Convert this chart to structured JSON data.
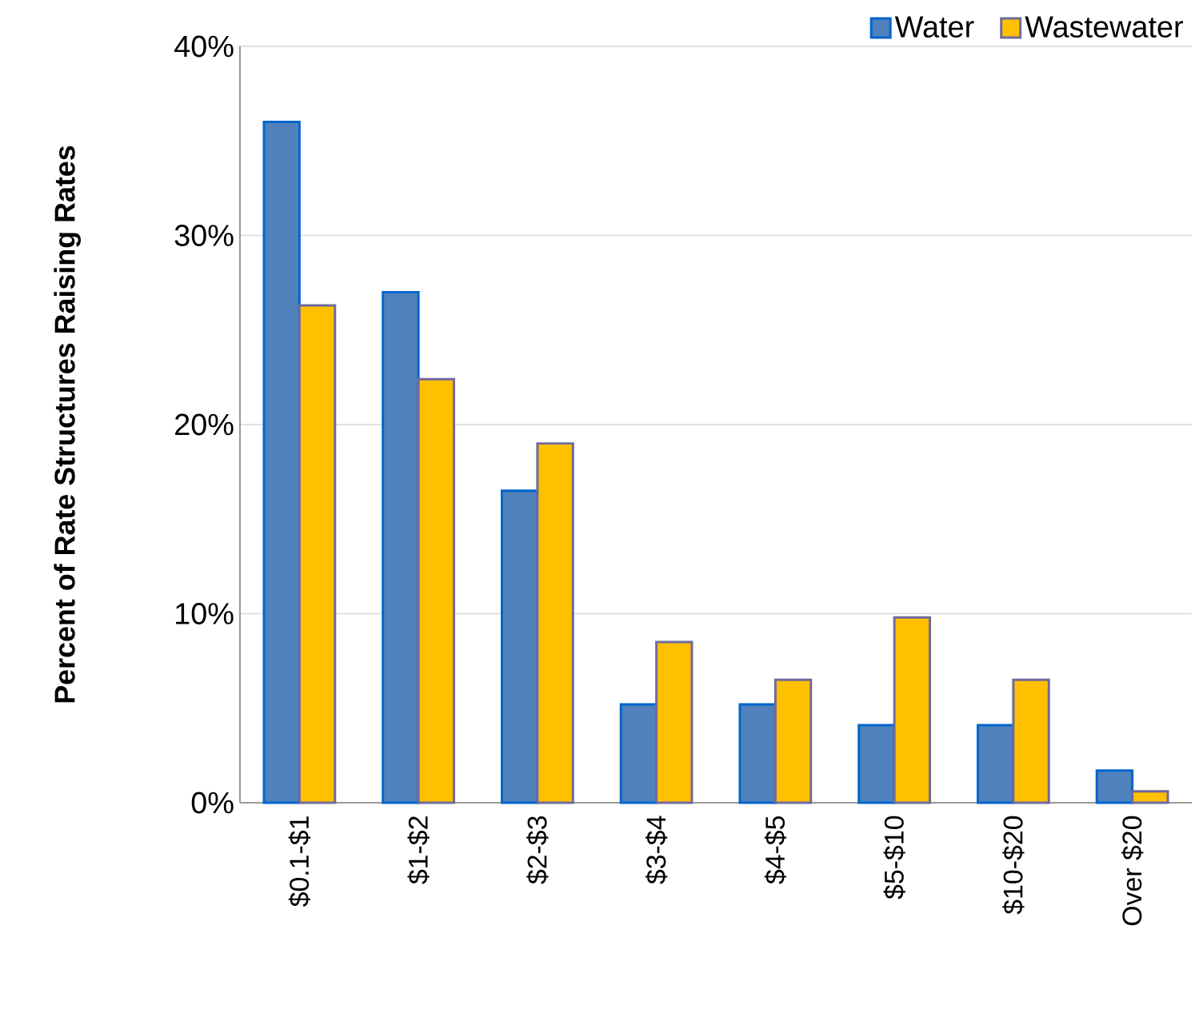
{
  "chart_data": {
    "type": "bar",
    "ylabel": "Percent of Rate Structures Raising Rates",
    "categories": [
      "$0.1-$1",
      "$1-$2",
      "$2-$3",
      "$3-$4",
      "$4-$5",
      "$5-$10",
      "$10-$20",
      "Over $20"
    ],
    "series": [
      {
        "name": "Water",
        "color": "#4f81bd",
        "values": [
          36.0,
          27.0,
          16.5,
          5.2,
          5.2,
          4.1,
          4.1,
          1.7
        ]
      },
      {
        "name": "Wastewater",
        "color": "#ffc000",
        "values": [
          26.3,
          22.4,
          19.0,
          8.5,
          6.5,
          9.8,
          6.5,
          0.6
        ]
      }
    ],
    "ylim": [
      0,
      40
    ],
    "yticks": [
      {
        "value": 0,
        "label": "0%"
      },
      {
        "value": 10,
        "label": "10%"
      },
      {
        "value": 20,
        "label": "20%"
      },
      {
        "value": 30,
        "label": "30%"
      },
      {
        "value": 40,
        "label": "40%"
      }
    ],
    "grid": "y",
    "legend": "top right"
  }
}
